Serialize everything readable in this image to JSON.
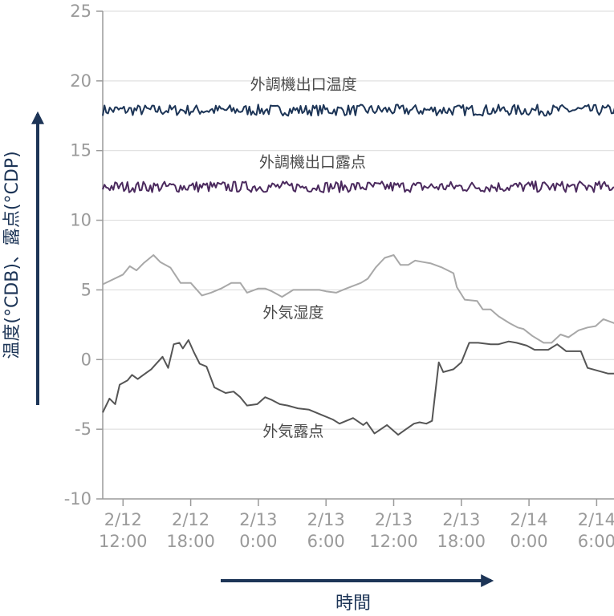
{
  "chart_data": {
    "type": "line",
    "xlabel": "時間",
    "ylabel": "温度(°CDB)、露点(°CDP)",
    "ylim": [
      -10,
      25
    ],
    "yticks": [
      -10,
      -5,
      0,
      5,
      10,
      15,
      20,
      25
    ],
    "xlim_hours": [
      0,
      72
    ],
    "x_ticks": [
      {
        "hour": 0,
        "date": "2/12",
        "time": "12:00"
      },
      {
        "hour": 6,
        "date": "2/12",
        "time": "18:00"
      },
      {
        "hour": 12,
        "date": "2/13",
        "time": "0:00"
      },
      {
        "hour": 18,
        "date": "2/13",
        "time": "6:00"
      },
      {
        "hour": 24,
        "date": "2/13",
        "time": "12:00"
      },
      {
        "hour": 30,
        "date": "2/13",
        "time": "18:00"
      },
      {
        "hour": 36,
        "date": "2/14",
        "time": "0:00"
      },
      {
        "hour": 42,
        "date": "2/14",
        "time": "6:00"
      }
    ],
    "grid": "horizontal",
    "legend": "none",
    "series": [
      {
        "name": "外調機出口温度",
        "color": "#1d3557",
        "mean": 17.9,
        "noise": 0.4,
        "x": [
          -1.8,
          45.2
        ],
        "y": [
          17.9,
          17.9
        ]
      },
      {
        "name": "外調機出口露点",
        "color": "#4b2a5e",
        "mean": 12.4,
        "noise": 0.4,
        "x": [
          -1.8,
          45.2
        ],
        "y": [
          12.4,
          12.4
        ]
      },
      {
        "name": "外気湿度",
        "color": "#a8a8a8",
        "x": [
          -1.8,
          0.0,
          0.6,
          1.2,
          1.8,
          2.7,
          3.3,
          4.2,
          5.1,
          6.0,
          7.0,
          7.8,
          8.7,
          9.6,
          10.4,
          11.0,
          12.0,
          12.6,
          13.2,
          14.1,
          15.1,
          16.0,
          17.4,
          18.0,
          18.9,
          19.8,
          21.1,
          21.7,
          22.4,
          23.2,
          24.0,
          24.6,
          25.3,
          25.9,
          26.6,
          27.3,
          28.3,
          29.3,
          29.6,
          30.3,
          31.4,
          31.9,
          32.6,
          33.3,
          34.3,
          35.0,
          35.5,
          36.3,
          37.3,
          38.0,
          38.8,
          39.5,
          40.4,
          41.2,
          41.9,
          42.6,
          43.6,
          44.3,
          45.2
        ],
        "y": [
          5.4,
          6.1,
          6.7,
          6.4,
          6.9,
          7.5,
          7.0,
          6.6,
          5.5,
          5.5,
          4.6,
          4.8,
          5.1,
          5.5,
          5.5,
          4.8,
          5.1,
          5.1,
          4.9,
          4.5,
          5.0,
          5.0,
          5.0,
          4.9,
          4.8,
          5.1,
          5.5,
          5.8,
          6.6,
          7.3,
          7.5,
          6.8,
          6.8,
          7.1,
          7.0,
          6.9,
          6.6,
          6.2,
          5.2,
          4.3,
          4.2,
          3.6,
          3.6,
          3.1,
          2.6,
          2.3,
          2.2,
          1.7,
          1.2,
          1.2,
          1.8,
          1.6,
          2.1,
          2.3,
          2.4,
          2.9,
          2.6,
          3.0,
          3.8
        ]
      },
      {
        "name": "外気露点",
        "color": "#555555",
        "x": [
          -1.8,
          -1.2,
          -0.7,
          -0.3,
          0.4,
          0.8,
          1.3,
          1.8,
          2.5,
          3.5,
          4.0,
          4.5,
          5.0,
          5.3,
          5.8,
          6.3,
          6.8,
          7.4,
          8.1,
          9.1,
          9.8,
          10.4,
          11.0,
          11.9,
          12.6,
          13.2,
          13.9,
          14.6,
          15.5,
          16.5,
          17.7,
          18.6,
          19.2,
          20.4,
          21.3,
          21.6,
          22.3,
          23.4,
          24.4,
          25.1,
          25.8,
          26.3,
          26.9,
          27.4,
          28.0,
          28.4,
          29.3,
          30.0,
          30.7,
          31.5,
          32.6,
          33.3,
          34.2,
          34.9,
          35.8,
          36.5,
          37.7,
          38.5,
          39.3,
          40.0,
          40.6,
          41.2,
          42.1,
          43.0,
          43.9,
          45.2
        ],
        "y": [
          -3.8,
          -2.8,
          -3.2,
          -1.8,
          -1.5,
          -1.1,
          -1.4,
          -1.1,
          -0.7,
          0.2,
          -0.6,
          1.1,
          1.2,
          0.8,
          1.4,
          0.5,
          -0.3,
          -0.5,
          -2.0,
          -2.4,
          -2.3,
          -2.7,
          -3.3,
          -3.2,
          -2.7,
          -2.9,
          -3.2,
          -3.3,
          -3.5,
          -3.6,
          -4.0,
          -4.3,
          -4.6,
          -4.2,
          -4.7,
          -4.5,
          -5.3,
          -4.7,
          -5.4,
          -5.0,
          -4.6,
          -4.5,
          -4.6,
          -4.4,
          -0.2,
          -0.9,
          -0.7,
          -0.2,
          1.2,
          1.2,
          1.1,
          1.1,
          1.3,
          1.2,
          1.0,
          0.7,
          0.7,
          1.1,
          0.6,
          0.6,
          0.6,
          -0.6,
          -0.8,
          -1.0,
          -1.0,
          -0.8
        ]
      }
    ],
    "annotations": [
      {
        "text": "外調機出口温度",
        "x": 16.0,
        "y": 19.4
      },
      {
        "text": "外調機出口露点",
        "x": 16.8,
        "y": 13.8
      },
      {
        "text": "外気湿度",
        "x": 15.1,
        "y": 3.0
      },
      {
        "text": "外気露点",
        "x": 15.1,
        "y": -5.5
      }
    ]
  }
}
